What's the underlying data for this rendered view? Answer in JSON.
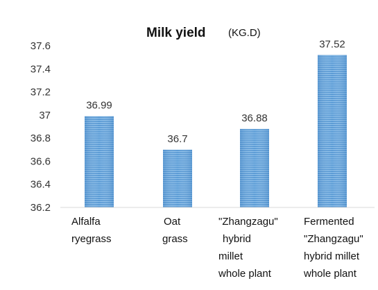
{
  "chart_data": {
    "type": "bar",
    "title": "Milk yield",
    "title_unit": "(KG.D)",
    "categories": [
      [
        "Alfalfa",
        "ryegrass"
      ],
      [
        "Oat",
        "grass"
      ],
      [
        "\"Zhangzagu\"",
        "hybrid",
        "millet",
        "whole plant"
      ],
      [
        "Fermented",
        "\"Zhangzagu\"",
        "hybrid millet",
        "whole plant"
      ]
    ],
    "values": [
      36.99,
      36.7,
      36.88,
      37.52
    ],
    "data_labels": [
      "36.99",
      "36.7",
      "36.88",
      "37.52"
    ],
    "ylim": [
      36.2,
      37.6
    ],
    "yticks": [
      "36.2",
      "36.4",
      "36.6",
      "36.8",
      "37",
      "37.2",
      "37.4",
      "37.6"
    ],
    "grid": false,
    "bar_color": "#5b9bd5",
    "xlabel": "",
    "ylabel": ""
  }
}
